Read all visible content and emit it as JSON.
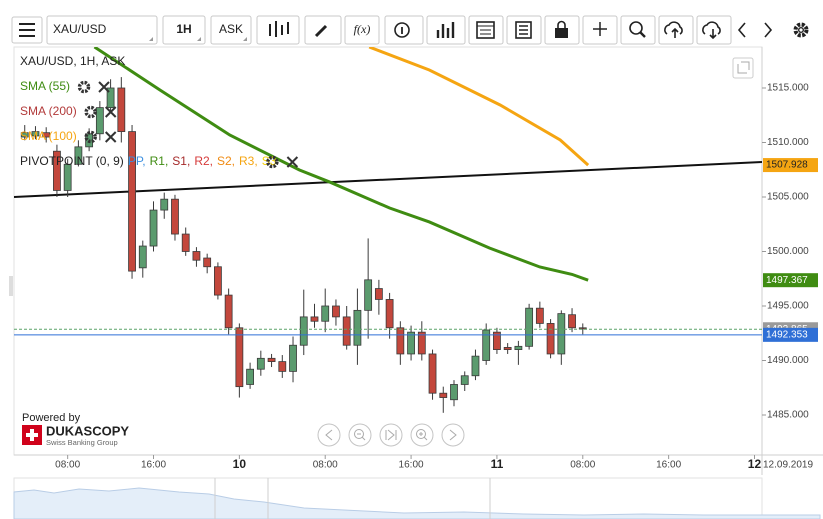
{
  "toolbar": {
    "symbol": "XAU/USD",
    "timeframe": "1H",
    "side": "ASK",
    "function_label": "f(x)"
  },
  "chart_data": {
    "type": "candlestick",
    "title": "XAU/USD, 1H, ASK",
    "x": [
      4,
      5,
      6,
      7,
      8,
      9,
      10,
      11,
      12,
      13,
      14,
      15,
      16,
      17,
      18,
      19,
      20,
      21,
      22,
      23,
      24,
      25,
      26,
      27,
      28,
      29,
      30,
      31,
      32,
      33,
      34,
      35,
      36,
      37,
      38,
      39,
      40,
      41,
      42,
      43,
      44,
      45,
      46,
      47,
      48,
      49,
      50,
      51,
      52,
      53,
      54,
      55,
      56
    ],
    "open": [
      1510.5,
      1510.6,
      1510.9,
      1509.2,
      1505.6,
      1508.0,
      1509.6,
      1510.8,
      1513.2,
      1515.0,
      1511.0,
      1498.5,
      1500.5,
      1503.8,
      1504.8,
      1501.6,
      1500.0,
      1499.4,
      1498.6,
      1496.0,
      1493.0,
      1487.8,
      1489.2,
      1490.2,
      1489.9,
      1489.0,
      1491.4,
      1494.0,
      1493.6,
      1495.0,
      1494.0,
      1491.4,
      1494.6,
      1496.6,
      1495.6,
      1493.0,
      1490.6,
      1492.6,
      1490.6,
      1487.0,
      1486.4,
      1487.8,
      1488.6,
      1490.0,
      1492.6,
      1491.2,
      1491.0,
      1491.3,
      1494.8,
      1493.4,
      1490.6,
      1494.2,
      1493.0
    ],
    "high": [
      1511.6,
      1511.5,
      1511.4,
      1509.8,
      1508.5,
      1510.2,
      1511.3,
      1513.8,
      1515.8,
      1516.0,
      1511.6,
      1501.0,
      1504.6,
      1505.4,
      1505.2,
      1502.2,
      1500.4,
      1499.8,
      1499.0,
      1496.6,
      1493.4,
      1489.8,
      1490.9,
      1490.6,
      1490.5,
      1492.2,
      1496.5,
      1495.2,
      1496.6,
      1495.6,
      1495.0,
      1496.6,
      1501.2,
      1497.4,
      1496.2,
      1493.6,
      1493.2,
      1493.6,
      1491.0,
      1487.6,
      1488.2,
      1489.0,
      1491.0,
      1493.4,
      1493.0,
      1491.6,
      1491.8,
      1495.2,
      1495.4,
      1493.8,
      1494.6,
      1494.8,
      1493.4
    ],
    "low": [
      1510.2,
      1510.3,
      1510.0,
      1505.0,
      1505.0,
      1507.8,
      1509.2,
      1510.2,
      1512.8,
      1510.0,
      1497.5,
      1497.6,
      1500.0,
      1503.0,
      1501.0,
      1499.6,
      1498.6,
      1498.0,
      1495.6,
      1492.4,
      1486.6,
      1487.4,
      1488.6,
      1489.4,
      1488.4,
      1488.0,
      1490.5,
      1493.0,
      1492.6,
      1493.2,
      1491.0,
      1489.6,
      1492.0,
      1494.2,
      1492.0,
      1489.6,
      1490.0,
      1490.0,
      1486.4,
      1485.2,
      1485.8,
      1487.2,
      1488.2,
      1489.6,
      1490.6,
      1490.6,
      1489.6,
      1491.0,
      1493.0,
      1490.2,
      1489.6,
      1492.6,
      1492.4
    ],
    "close": [
      1510.9,
      1511.0,
      1510.5,
      1505.6,
      1508.0,
      1509.6,
      1510.8,
      1513.2,
      1515.0,
      1511.0,
      1498.2,
      1500.5,
      1503.8,
      1504.8,
      1501.6,
      1500.0,
      1499.2,
      1498.6,
      1496.0,
      1493.0,
      1487.6,
      1489.2,
      1490.2,
      1489.9,
      1489.0,
      1491.4,
      1494.0,
      1493.6,
      1495.0,
      1494.0,
      1491.4,
      1494.6,
      1497.4,
      1495.6,
      1493.0,
      1490.6,
      1492.6,
      1490.6,
      1487.0,
      1486.6,
      1487.8,
      1488.6,
      1490.4,
      1492.8,
      1491.0,
      1491.0,
      1491.3,
      1494.8,
      1493.4,
      1490.6,
      1494.3,
      1493.0,
      1492.9
    ],
    "up_color": "#5b9b6e",
    "down_color": "#c3473c",
    "outline_color": "#3a3a3a",
    "xlim": [
      3,
      72.7
    ],
    "ylim": [
      1481.33,
      1518.76
    ],
    "xticks": [
      {
        "value": 8,
        "label": "08:00"
      },
      {
        "value": 16,
        "label": "16:00"
      },
      {
        "value": 24,
        "label": "10"
      },
      {
        "value": 32,
        "label": "08:00"
      },
      {
        "value": 40,
        "label": "16:00"
      },
      {
        "value": 48,
        "label": "11"
      },
      {
        "value": 56,
        "label": "08:00"
      },
      {
        "value": 64,
        "label": "16:00"
      },
      {
        "value": 72,
        "label": "12"
      }
    ],
    "cursor_date": "12.09.2019",
    "yticks": [
      {
        "value": 1485,
        "label": "1485.000"
      },
      {
        "value": 1490,
        "label": "1490.000"
      },
      {
        "value": 1495,
        "label": "1495.000"
      },
      {
        "value": 1500,
        "label": "1500.000"
      },
      {
        "value": 1505,
        "label": "1505.000"
      },
      {
        "value": 1510,
        "label": "1510.000"
      },
      {
        "value": 1515,
        "label": "1515.000"
      }
    ],
    "grid": false,
    "series": [
      {
        "name": "SMA (55)",
        "color": "#3f8c12",
        "axis_label": true,
        "label_text_color": "#ffffff",
        "x": [
          10.5,
          16.6,
          23.1,
          29.6,
          32.4,
          38.0,
          41.7,
          47.3,
          52.0,
          55.0,
          56.5
        ],
        "values": [
          1518.76,
          1514.82,
          1510.69,
          1507.48,
          1506.38,
          1503.99,
          1502.71,
          1500.32,
          1498.58,
          1497.9,
          1497.367
        ]
      },
      {
        "name": "SMA (200)",
        "color": "#b23a3a",
        "axis_label": false,
        "label_text_color": "#ffffff",
        "x": [],
        "values": []
      },
      {
        "name": "SMA (100)",
        "color": "#f5a512",
        "axis_label": true,
        "label_text_color": "#222222",
        "x": [
          36.1,
          41.7,
          48.3,
          53.9,
          56.5
        ],
        "values": [
          1518.76,
          1516.65,
          1513.44,
          1510.23,
          1507.928
        ]
      }
    ],
    "pivot": {
      "name": "PIVOTPOINT (0, 9)",
      "color": "#111111",
      "x": [
        3,
        72.7
      ],
      "values": [
        1505.0,
        1508.21
      ],
      "levels": [
        {
          "label": "PP,",
          "color": "#3b8fe0"
        },
        {
          "label": "R1,",
          "color": "#3f8c12"
        },
        {
          "label": "S1,",
          "color": "#a52a2a"
        },
        {
          "label": "R2,",
          "color": "#d63a3a"
        },
        {
          "label": "S2,",
          "color": "#f08a12"
        },
        {
          "label": "R3,",
          "color": "#f5a512"
        },
        {
          "label": "S3",
          "color": "#f5d000"
        }
      ]
    },
    "price_lines": [
      {
        "value": 1492.865,
        "color": "#5aa469",
        "label_color": "#9a9a9a",
        "dashed": true
      },
      {
        "value": 1492.353,
        "color": "#2f6fd6",
        "label_color": "#2f6fd6",
        "dashed": false
      }
    ]
  },
  "branding": {
    "powered": "Powered by",
    "brand": "DUKASCOPY",
    "tagline": "Swiss Banking Group"
  }
}
